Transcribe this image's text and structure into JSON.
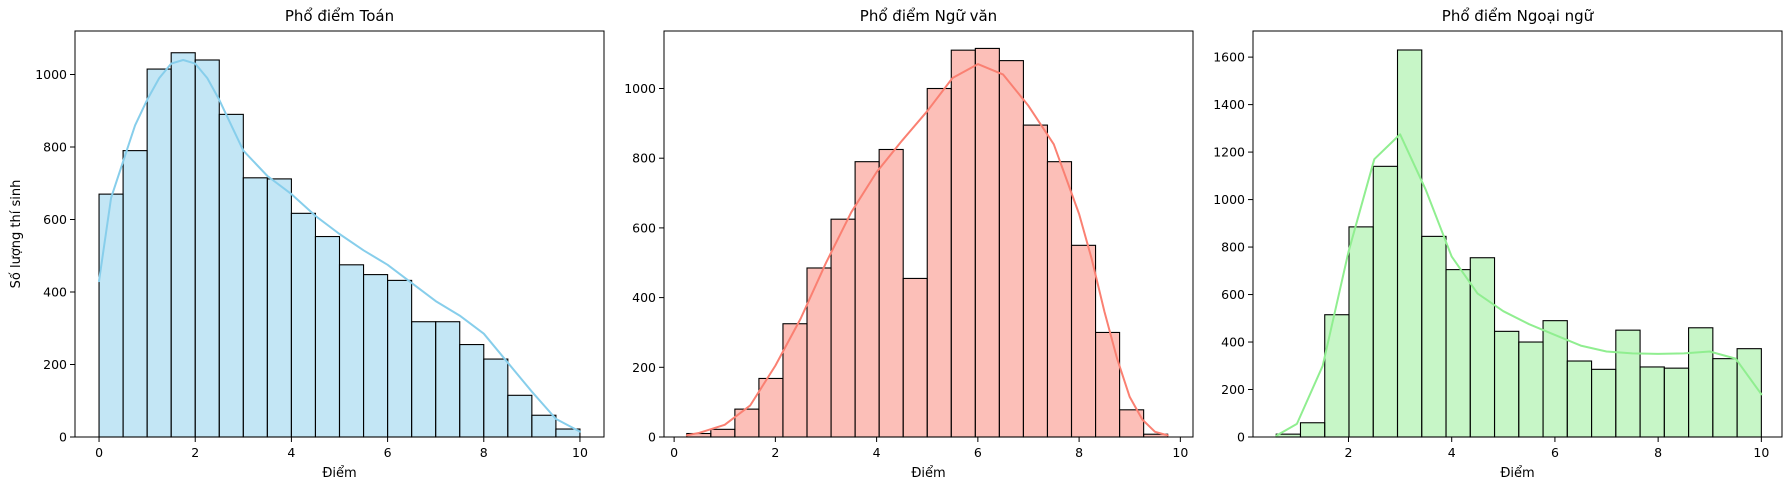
{
  "chart_data": [
    {
      "type": "bar",
      "title": "Phổ điểm Toán",
      "xlabel": "Điểm",
      "ylabel": "Số lượng thí sinh",
      "xlim": [
        -0.5,
        10.5
      ],
      "ylim": [
        0,
        1120
      ],
      "xticks": [
        0,
        2,
        4,
        6,
        8,
        10
      ],
      "yticks": [
        0,
        200,
        400,
        600,
        800,
        1000
      ],
      "color": "#87CEEB",
      "bin_edges": [
        0,
        0.5,
        1,
        1.5,
        2,
        2.5,
        3,
        3.5,
        4,
        4.5,
        5,
        5.5,
        6,
        6.5,
        7,
        7.5,
        8,
        8.5,
        9,
        9.5,
        10
      ],
      "values": [
        670,
        790,
        1015,
        1060,
        1040,
        890,
        715,
        712,
        617,
        553,
        475,
        448,
        432,
        318,
        318,
        255,
        215,
        115,
        60,
        22
      ],
      "kde_x": [
        0,
        0.25,
        0.5,
        0.75,
        1,
        1.25,
        1.5,
        1.75,
        2,
        2.25,
        2.5,
        2.75,
        3,
        3.5,
        4,
        4.5,
        5,
        5.5,
        6,
        6.5,
        7,
        7.5,
        8,
        8.5,
        9,
        9.5,
        10
      ],
      "kde_y": [
        430,
        660,
        760,
        860,
        930,
        990,
        1030,
        1040,
        1030,
        990,
        930,
        860,
        790,
        720,
        670,
        610,
        560,
        515,
        475,
        425,
        375,
        335,
        285,
        205,
        125,
        50,
        15
      ]
    },
    {
      "type": "bar",
      "title": "Phổ điểm Ngữ văn",
      "xlabel": "Điểm",
      "ylabel": "",
      "xlim": [
        -0.2,
        10.25
      ],
      "ylim": [
        0,
        1165
      ],
      "xticks": [
        0,
        2,
        4,
        6,
        8,
        10
      ],
      "yticks": [
        0,
        200,
        400,
        600,
        800,
        1000
      ],
      "color": "#FA8072",
      "bin_edges": [
        0.25,
        0.725,
        1.2,
        1.675,
        2.15,
        2.625,
        3.1,
        3.575,
        4.05,
        4.525,
        5.0,
        5.475,
        5.95,
        6.425,
        6.9,
        7.375,
        7.85,
        8.325,
        8.8,
        9.275,
        9.75
      ],
      "values": [
        10,
        22,
        80,
        168,
        325,
        485,
        625,
        790,
        825,
        455,
        1000,
        1110,
        1115,
        1080,
        895,
        790,
        550,
        300,
        78,
        8
      ],
      "kde_x": [
        0.25,
        0.5,
        1,
        1.5,
        2,
        2.5,
        3,
        3.5,
        4,
        4.5,
        5,
        5.5,
        6,
        6.5,
        7,
        7.5,
        8,
        8.25,
        8.5,
        8.75,
        9,
        9.25,
        9.5,
        9.75
      ],
      "kde_y": [
        5,
        12,
        35,
        90,
        205,
        340,
        500,
        645,
        760,
        850,
        935,
        1030,
        1070,
        1040,
        950,
        840,
        640,
        510,
        360,
        225,
        115,
        50,
        15,
        5
      ]
    },
    {
      "type": "bar",
      "title": "Phổ điểm Ngoại ngữ",
      "xlabel": "Điểm",
      "ylabel": "",
      "xlim": [
        0.15,
        10.4
      ],
      "ylim": [
        0,
        1710
      ],
      "xticks": [
        2,
        4,
        6,
        8,
        10
      ],
      "yticks": [
        0,
        200,
        400,
        600,
        800,
        1000,
        1200,
        1400,
        1600
      ],
      "color": "#90EE90",
      "bin_edges": [
        0.6,
        1.07,
        1.54,
        2.01,
        2.48,
        2.95,
        3.42,
        3.89,
        4.36,
        4.83,
        5.3,
        5.77,
        6.24,
        6.71,
        7.18,
        7.65,
        8.12,
        8.59,
        9.06,
        9.53,
        10.0
      ],
      "values": [
        12,
        60,
        515,
        885,
        1140,
        1630,
        845,
        705,
        755,
        445,
        400,
        490,
        320,
        285,
        450,
        295,
        290,
        460,
        330,
        372
      ],
      "kde_x": [
        0.6,
        1,
        1.5,
        2,
        2.5,
        3,
        3.5,
        4,
        4.5,
        5,
        5.5,
        6,
        6.5,
        7,
        7.5,
        8,
        8.5,
        9,
        9.5,
        10
      ],
      "kde_y": [
        5,
        55,
        300,
        780,
        1170,
        1275,
        1040,
        760,
        605,
        530,
        475,
        430,
        385,
        360,
        352,
        350,
        352,
        360,
        330,
        180
      ]
    }
  ]
}
